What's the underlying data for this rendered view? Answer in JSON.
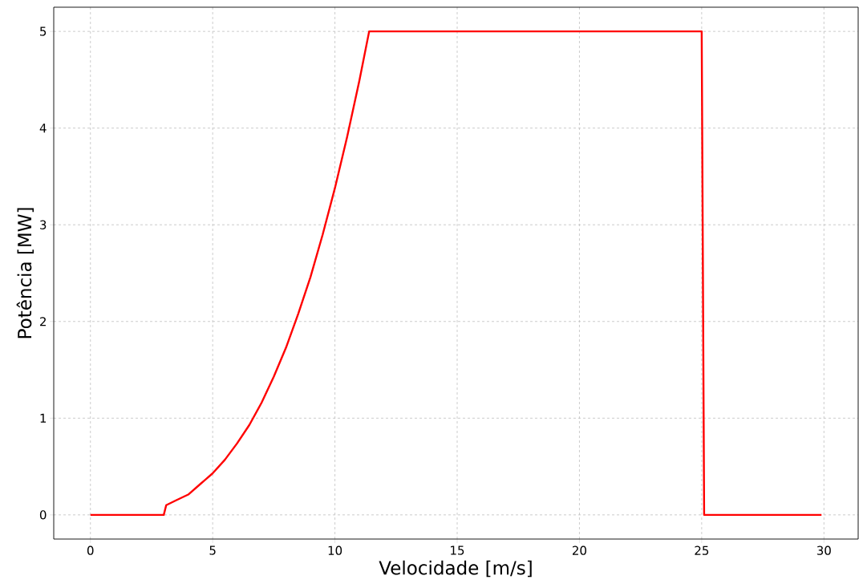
{
  "chart_data": {
    "type": "line",
    "xlabel": "Velocidade [m/s]",
    "ylabel": "Potência [MW]",
    "x": [
      0,
      3,
      3.1,
      3.5,
      4,
      4.5,
      5,
      5.5,
      6,
      6.5,
      7,
      7.5,
      8,
      8.5,
      9,
      9.5,
      10,
      10.5,
      11,
      11.4,
      25,
      25.1,
      29.9
    ],
    "series": [
      {
        "color": "#ff0000",
        "values": [
          0,
          0,
          0.1,
          0.15,
          0.21,
          0.32,
          0.43,
          0.57,
          0.74,
          0.93,
          1.16,
          1.43,
          1.73,
          2.08,
          2.46,
          2.9,
          3.38,
          3.91,
          4.49,
          5,
          5,
          0,
          0
        ]
      }
    ],
    "xlim": [
      -1.5,
      31.4
    ],
    "ylim": [
      -0.25,
      5.25
    ],
    "xticks": [
      0,
      5,
      10,
      15,
      20,
      25,
      30
    ],
    "yticks": [
      0,
      1,
      2,
      3,
      4,
      5
    ],
    "grid": true,
    "marker": "none",
    "line_style": "solid"
  }
}
